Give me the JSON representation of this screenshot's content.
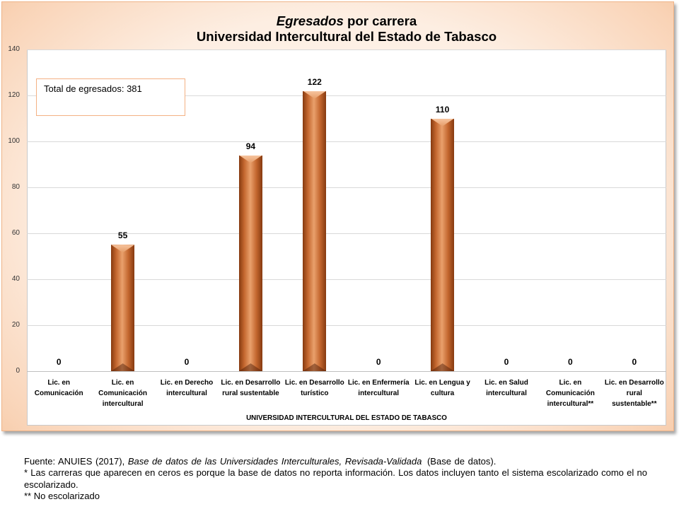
{
  "chart_data": {
    "type": "bar",
    "title": {
      "italic": "Egresados",
      "regular": "por carrera"
    },
    "subtitle": "Universidad Intercultural del Estado de Tabasco",
    "categories": [
      "Lic. en\nComunicación",
      "Lic. en\nComunicación\nintercultural",
      "Lic. en Derecho\nintercultural",
      "Lic. en Desarrollo\nrural sustentable",
      "Lic. en Desarrollo\nturístico",
      "Lic. en Enfermería\nintercultural",
      "Lic. en Lengua y\ncultura",
      "Lic. en Salud\nintercultural",
      "Lic. en\nComunicación\nintercultural**",
      "Lic. en Desarrollo\nrural\nsustentable**"
    ],
    "group_label": "UNIVERSIDAD INTERCULTURAL DEL ESTADO DE TABASCO",
    "values": [
      0,
      55,
      0,
      94,
      122,
      0,
      110,
      0,
      0,
      0
    ],
    "ylim": [
      0,
      140
    ],
    "yticks": [
      0,
      20,
      40,
      60,
      80,
      100,
      120,
      140
    ],
    "grid": "horizontal",
    "legend": "none",
    "annotation": "Total de egresados: 381",
    "colors": {
      "bar": "#c4672f",
      "bar_light": "#e9a06c",
      "bar_dark": "#863a10"
    }
  },
  "footnotes": {
    "source_prefix": "Fuente: ANUIES (2017),",
    "source_title": "Base de datos de las Universidades Interculturales, Revisada-Validada",
    "source_suffix": "(Base de datos).",
    "zeros_note": "* Las carreras que aparecen en ceros es porque la base de datos no reporta información. Los datos incluyen tanto el sistema escolarizado como el no escolarizado.",
    "non_school_note": "** No escolarizado"
  }
}
